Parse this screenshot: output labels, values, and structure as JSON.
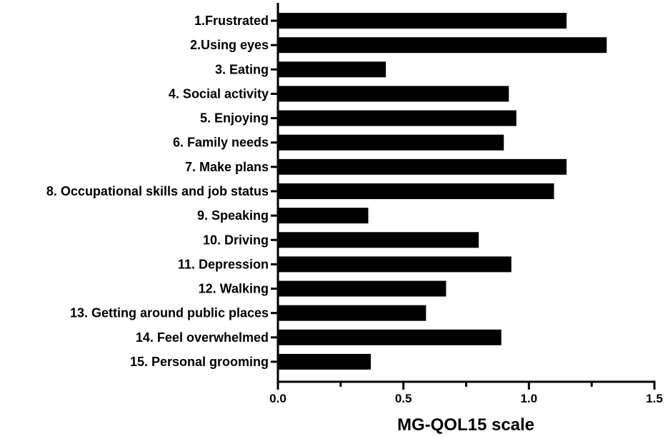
{
  "chart_data": {
    "type": "bar",
    "orientation": "horizontal",
    "categories": [
      "1.Frustrated",
      "2.Using eyes",
      "3. Eating",
      "4. Social activity",
      "5. Enjoying",
      "6. Family needs",
      "7. Make plans",
      "8. Occupational skills and job status",
      "9. Speaking",
      "10. Driving",
      "11. Depression",
      "12. Walking",
      "13. Getting around public places",
      "14. Feel overwhelmed",
      "15. Personal grooming"
    ],
    "values": [
      1.15,
      1.31,
      0.43,
      0.92,
      0.95,
      0.9,
      1.15,
      1.1,
      0.36,
      0.8,
      0.93,
      0.67,
      0.59,
      0.89,
      0.37
    ],
    "title": "",
    "xlabel": "MG-QOL15 scale",
    "ylabel": "",
    "xlim": [
      0,
      1.5
    ],
    "xticks": [
      0.0,
      0.5,
      1.0,
      1.5
    ],
    "xtick_labels": [
      "0.0",
      "0.5",
      "1.0",
      "1.5"
    ],
    "minor_ticks": [
      0.25,
      0.75,
      1.25
    ],
    "grid": false,
    "legend": "none",
    "colors": {
      "bar": "#000000",
      "axis": "#000000",
      "background": "#ffffff"
    }
  }
}
